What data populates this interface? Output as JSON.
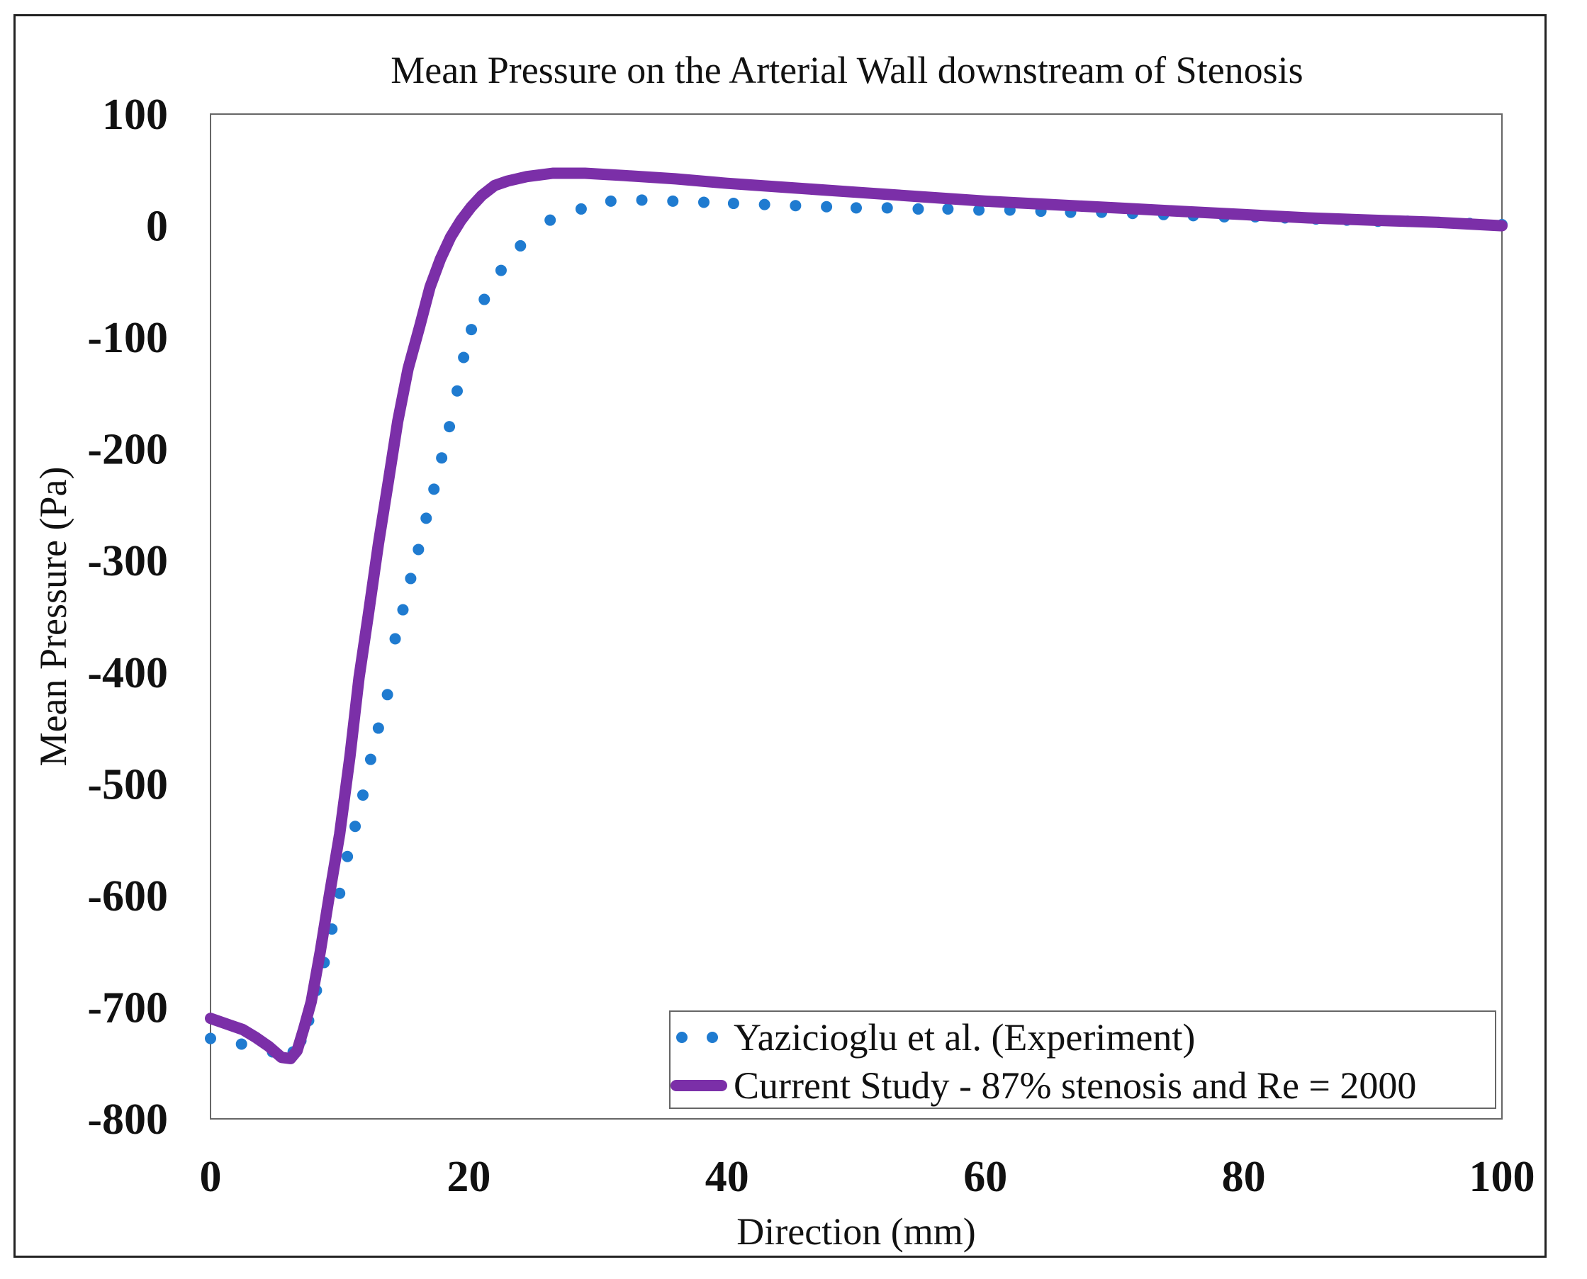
{
  "chart_data": {
    "type": "line",
    "title": "Mean Pressure on the Arterial Wall downstream of Stenosis",
    "xlabel": "Direction (mm)",
    "ylabel": "Mean Pressure (Pa)",
    "xlim": [
      0,
      100
    ],
    "ylim": [
      -800,
      100
    ],
    "xticks": [
      0,
      20,
      40,
      60,
      80,
      100
    ],
    "yticks": [
      100,
      0,
      -100,
      -200,
      -300,
      -400,
      -500,
      -600,
      -700,
      -800
    ],
    "grid": false,
    "legend_position": "bottom-right",
    "series": [
      {
        "name": "Yazicioglu et al. (Experiment)",
        "style": "dotted",
        "color": "#1f7bd0",
        "x": [
          0,
          2.4,
          4.8,
          6.4,
          7.0,
          7.6,
          8.2,
          8.8,
          9.4,
          10.0,
          10.6,
          11.2,
          11.8,
          12.4,
          13.0,
          13.7,
          14.3,
          14.9,
          15.5,
          16.1,
          16.7,
          17.3,
          17.9,
          18.5,
          19.1,
          19.6,
          20.2,
          21.2,
          22.5,
          24.0,
          26.3,
          28.7,
          31.0,
          33.4,
          35.8,
          38.2,
          40.5,
          42.9,
          45.3,
          47.7,
          50.0,
          52.4,
          54.8,
          57.1,
          59.5,
          61.9,
          64.3,
          66.6,
          69.0,
          71.4,
          73.8,
          76.1,
          78.5,
          80.9,
          83.2,
          85.6,
          88.0,
          90.4,
          92.7,
          95.1,
          97.5,
          100
        ],
        "y": [
          -728,
          -733,
          -740,
          -740,
          -730,
          -712,
          -685,
          -660,
          -630,
          -598,
          -565,
          -538,
          -510,
          -478,
          -450,
          -420,
          -370,
          -344,
          -316,
          -290,
          -262,
          -236,
          -208,
          -180,
          -148,
          -118,
          -93,
          -66,
          -40,
          -18,
          5,
          15,
          22,
          23,
          22,
          21,
          20,
          19,
          18,
          17,
          16,
          16,
          15,
          15,
          14,
          14,
          13,
          12,
          12,
          11,
          10,
          9,
          8,
          8,
          7,
          6,
          5,
          4,
          4,
          3,
          2,
          1
        ]
      },
      {
        "name": "Current Study - 87% stenosis and Re = 2000",
        "style": "solid",
        "color": "#7b2fa8",
        "x": [
          0,
          1.5,
          2.5,
          3.5,
          4.5,
          5.5,
          6.2,
          6.7,
          7.2,
          7.8,
          8.5,
          9.2,
          10.0,
          10.8,
          11.5,
          12.2,
          13.0,
          13.8,
          14.5,
          15.3,
          16.2,
          17.0,
          17.8,
          18.6,
          19.4,
          20.2,
          21.0,
          22.0,
          23.0,
          24.5,
          26.5,
          29.0,
          32.0,
          36.0,
          40.0,
          45.0,
          50.0,
          55.0,
          60.0,
          65.0,
          70.0,
          75.0,
          80.0,
          85.0,
          90.0,
          95.0,
          100
        ],
        "y": [
          -710,
          -716,
          -720,
          -727,
          -735,
          -745,
          -746,
          -739,
          -720,
          -695,
          -650,
          -600,
          -545,
          -475,
          -405,
          -350,
          -285,
          -227,
          -175,
          -128,
          -90,
          -55,
          -30,
          -10,
          5,
          17,
          27,
          36,
          40,
          44,
          47,
          47,
          45,
          42,
          38,
          34,
          30,
          26,
          22,
          19,
          16,
          13,
          10,
          7,
          5,
          3,
          0
        ]
      }
    ]
  }
}
